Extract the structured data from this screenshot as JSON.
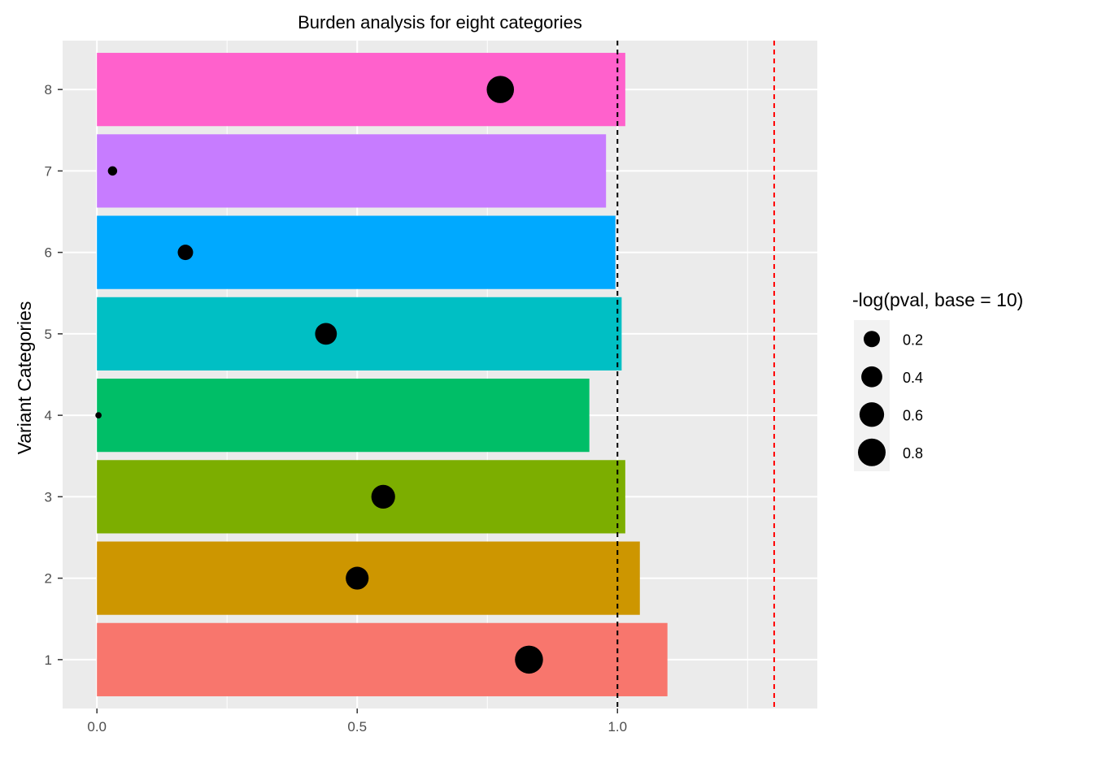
{
  "chart_data": {
    "type": "bar",
    "orientation": "horizontal",
    "title": "Burden analysis for eight categories",
    "xlabel": "",
    "ylabel": "Variant Categories",
    "categories": [
      "1",
      "2",
      "3",
      "4",
      "5",
      "6",
      "7",
      "8"
    ],
    "values": [
      1.096,
      1.043,
      1.015,
      0.946,
      1.008,
      0.996,
      0.978,
      1.015
    ],
    "bar_colors": [
      "#F8766D",
      "#CD9600",
      "#7CAE00",
      "#00BE67",
      "#00BFC4",
      "#00A9FF",
      "#C77CFF",
      "#FF61CC"
    ],
    "points": {
      "x": [
        0.83,
        0.5,
        0.55,
        0.003,
        0.44,
        0.17,
        0.03,
        0.775
      ],
      "size": [
        0.83,
        0.5,
        0.55,
        0.003,
        0.44,
        0.17,
        0.03,
        0.775
      ],
      "color": "#000000"
    },
    "reference_lines": [
      {
        "x": 1.0,
        "color": "#000000",
        "style": "dashed"
      },
      {
        "x": 1.301,
        "color": "#FF0000",
        "style": "dashed"
      }
    ],
    "x_ticks": [
      "0.0",
      "0.5",
      "1.0"
    ],
    "x_tick_values": [
      0,
      0.5,
      1.0
    ],
    "xlim": [
      -0.0659,
      1.3839
    ],
    "ylim": [
      0.4,
      8.6
    ],
    "grid": true,
    "panel_background": "#EBEBEB",
    "legend": {
      "title": "-log(pval, base = 10)",
      "placement": "right",
      "values": [
        0.2,
        0.4,
        0.6,
        0.8
      ],
      "labels": [
        "0.2",
        "0.4",
        "0.6",
        "0.8"
      ]
    }
  }
}
